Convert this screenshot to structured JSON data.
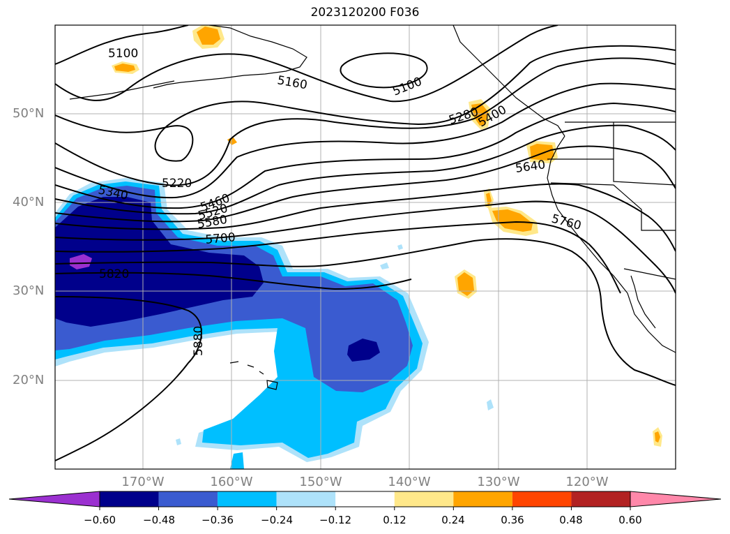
{
  "title": "2023120200 F036",
  "map": {
    "lat_labels": [
      "50°N",
      "40°N",
      "30°N",
      "20°N"
    ],
    "lon_labels": [
      "170°W",
      "160°W",
      "150°W",
      "140°W",
      "130°W",
      "120°W"
    ],
    "contour_labels": [
      "5100",
      "5160",
      "5100",
      "5220",
      "5280",
      "5400",
      "5340",
      "5460",
      "5520",
      "5580",
      "5640",
      "5700",
      "5760",
      "5820",
      "5880"
    ]
  },
  "colorbar": {
    "ticks": [
      "−0.60",
      "−0.48",
      "−0.36",
      "−0.24",
      "−0.12",
      "0.12",
      "0.24",
      "0.36",
      "0.48",
      "0.60"
    ],
    "colors": [
      "#9b30d0",
      "#00008b",
      "#3a5bd0",
      "#00bfff",
      "#aee2fa",
      "#ffffff",
      "#ffe88a",
      "#ffa500",
      "#ff4500",
      "#b22222",
      "#ff88aa"
    ]
  }
}
